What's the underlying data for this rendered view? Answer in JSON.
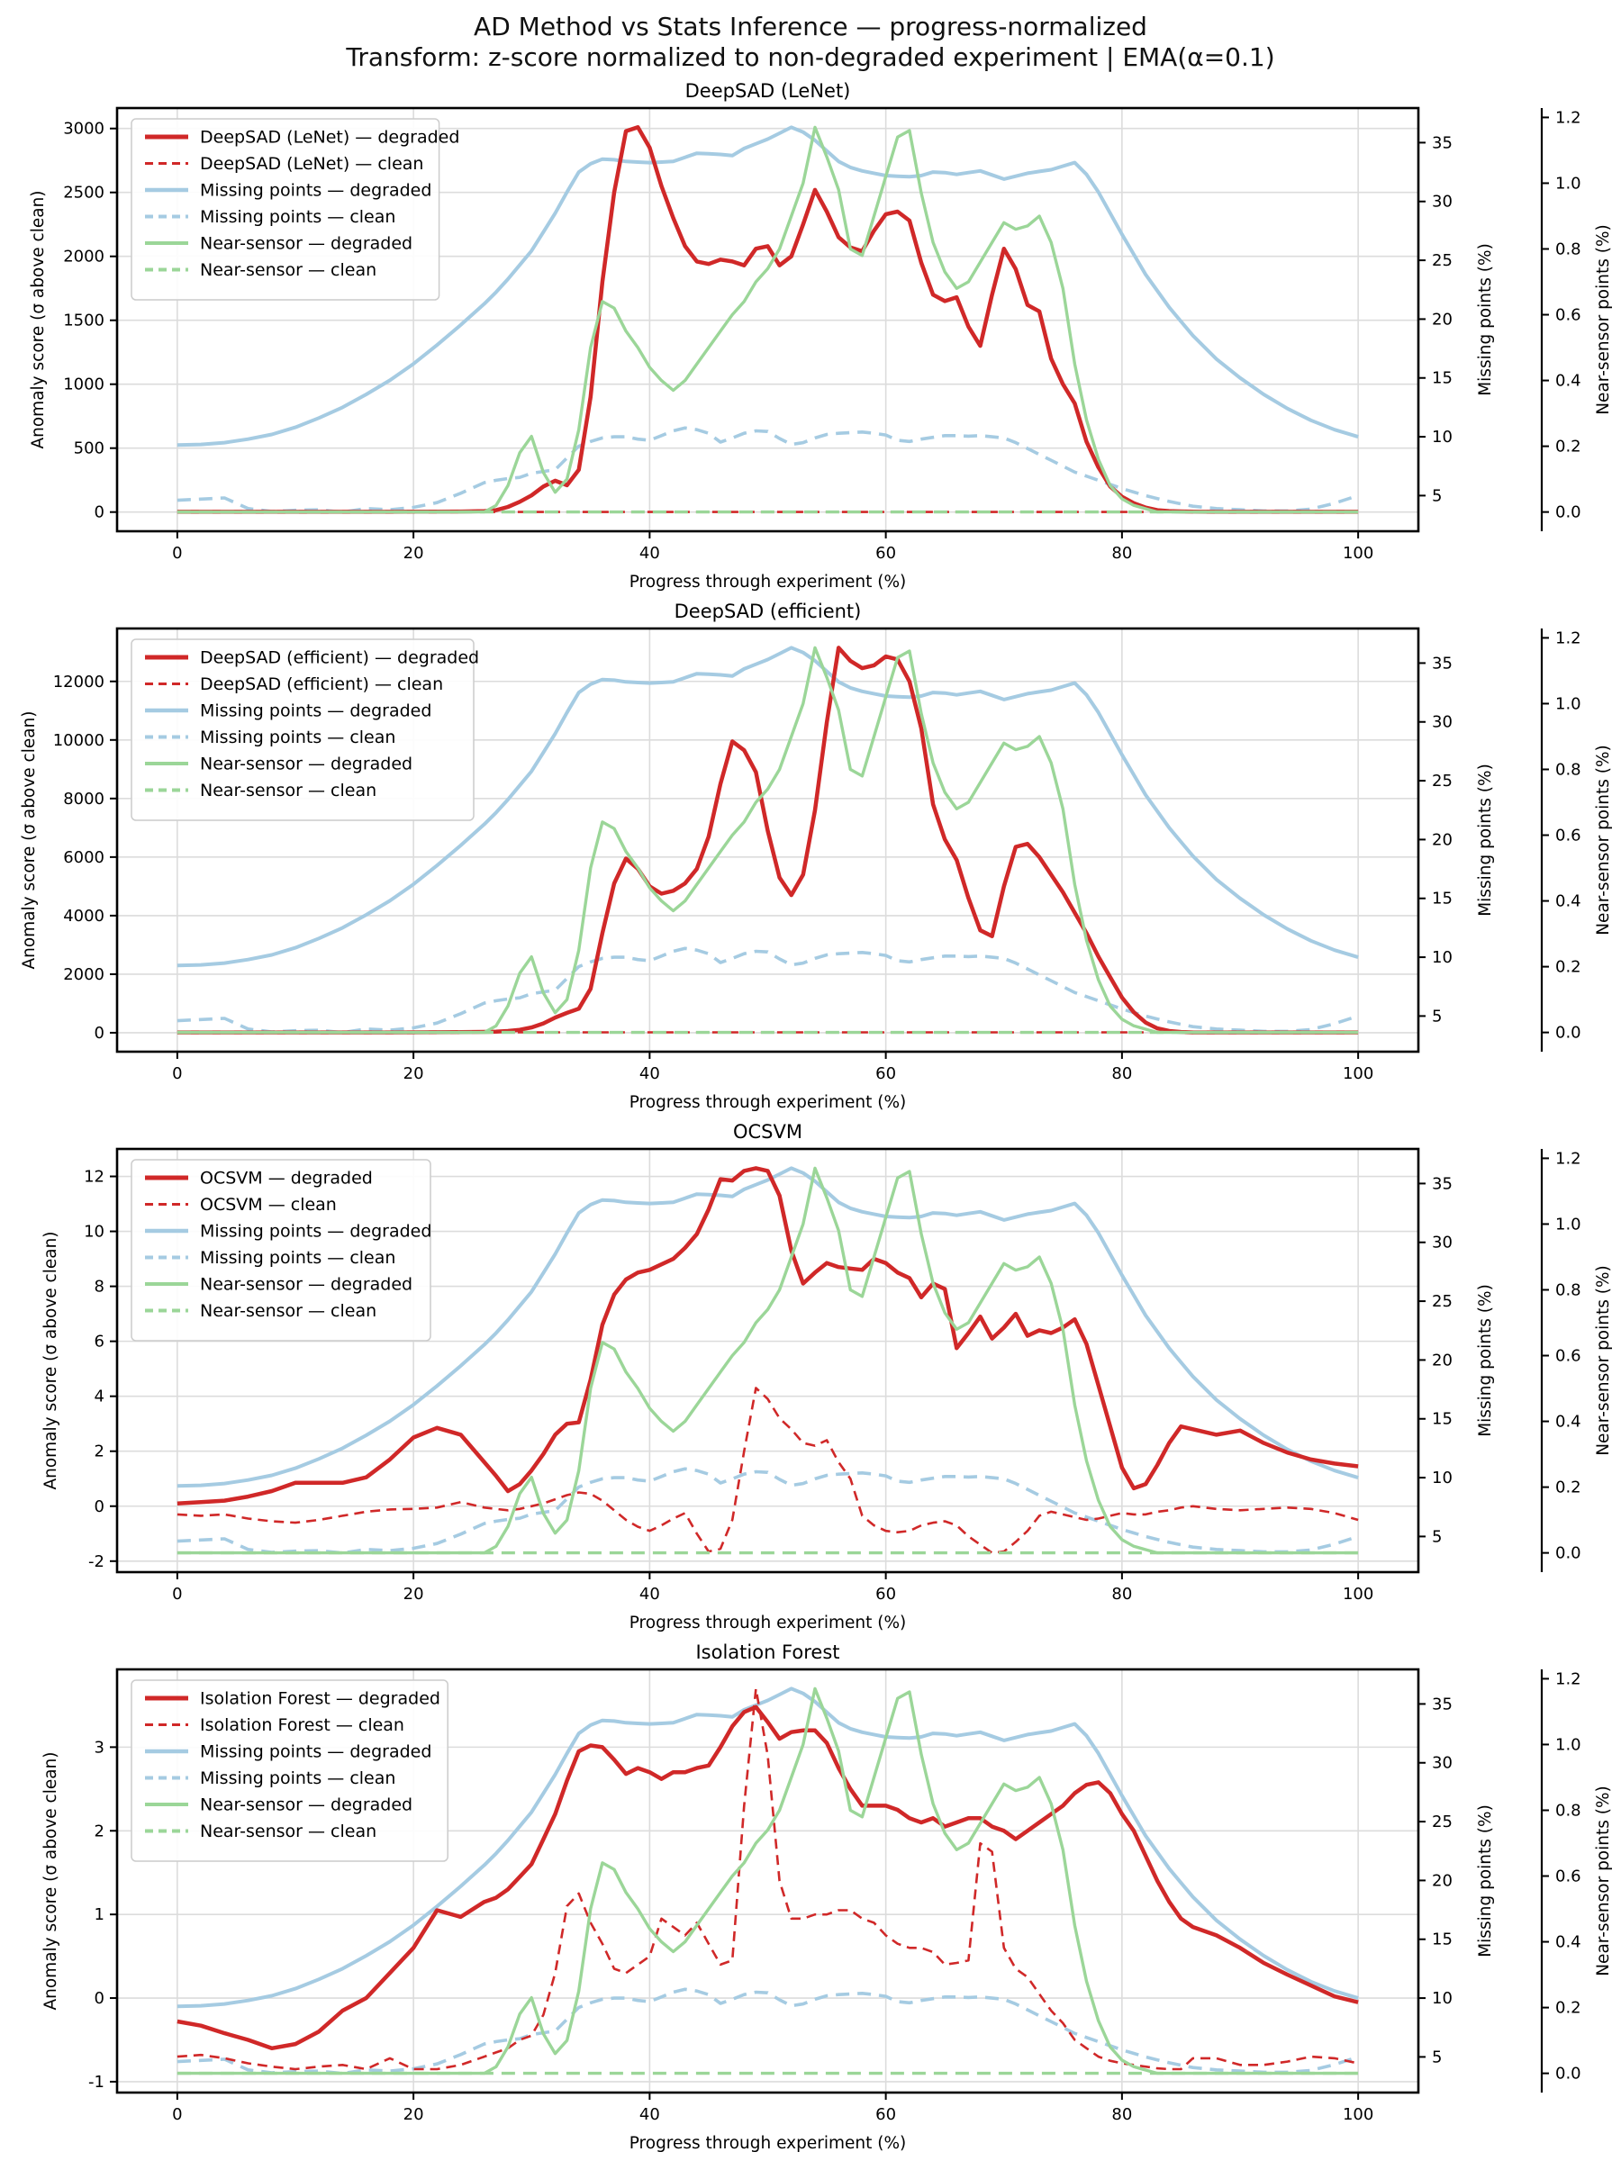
{
  "header": {
    "title": "AD Method vs Stats Inference — progress-normalized",
    "subtitle": "Transform: z-score normalized to non-degraded experiment | EMA(α=0.1)"
  },
  "colors": {
    "method": "#d02828",
    "missing": "#a5cbe2",
    "near": "#9bd698",
    "grid": "#dcdcdc",
    "spine": "#000000",
    "legend_border": "#cccccc",
    "text": "#000000"
  },
  "chart_data": {
    "type": "line",
    "xlabel": "Progress through experiment (%)",
    "ylabel_left": "Anomaly score (σ above clean)",
    "ylabel_right1": "Missing points (%)",
    "ylabel_right2": "Near-sensor points (%)",
    "x_ticks": [
      0,
      20,
      40,
      60,
      80,
      100
    ],
    "xlim": [
      -5.1,
      105.1
    ],
    "right1": {
      "lim": [
        1.97,
        37.94
      ],
      "ticks": [
        5,
        10,
        15,
        20,
        25,
        30,
        35
      ]
    },
    "right2": {
      "lim": [
        -0.0585,
        1.2285
      ],
      "ticks": [
        0.0,
        0.2,
        0.4,
        0.6,
        0.8,
        1.0,
        1.2
      ],
      "decimals": 1
    },
    "x": [
      0,
      2,
      4,
      6,
      8,
      10,
      12,
      14,
      16,
      18,
      20,
      22,
      24,
      26,
      27,
      28,
      29,
      30,
      31,
      32,
      33,
      34,
      35,
      36,
      37,
      38,
      39,
      40,
      41,
      42,
      43,
      44,
      45,
      46,
      47,
      48,
      49,
      50,
      51,
      52,
      53,
      54,
      55,
      56,
      57,
      58,
      59,
      60,
      61,
      62,
      63,
      64,
      65,
      66,
      67,
      68,
      69,
      70,
      71,
      72,
      73,
      74,
      75,
      76,
      77,
      78,
      79,
      80,
      81,
      82,
      83,
      84,
      85,
      86,
      88,
      90,
      92,
      94,
      96,
      98,
      100
    ],
    "stats": {
      "missing_degraded": {
        "label": "Missing points — degraded",
        "axis": "right1",
        "dashed": false,
        "values": [
          9.3,
          9.35,
          9.5,
          9.8,
          10.2,
          10.8,
          11.6,
          12.5,
          13.6,
          14.8,
          16.2,
          17.8,
          19.5,
          21.3,
          22.3,
          23.4,
          24.6,
          25.8,
          27.4,
          29.0,
          30.8,
          32.5,
          33.2,
          33.6,
          33.55,
          33.4,
          33.35,
          33.3,
          33.35,
          33.4,
          33.75,
          34.1,
          34.05,
          34.0,
          33.9,
          34.5,
          34.9,
          35.3,
          35.8,
          36.3,
          35.9,
          35.2,
          34.3,
          33.4,
          32.9,
          32.6,
          32.4,
          32.2,
          32.15,
          32.1,
          32.2,
          32.5,
          32.45,
          32.3,
          32.45,
          32.6,
          32.25,
          31.9,
          32.15,
          32.4,
          32.55,
          32.7,
          33.0,
          33.3,
          32.3,
          30.8,
          29.0,
          27.2,
          25.5,
          23.8,
          22.4,
          21.0,
          19.8,
          18.6,
          16.6,
          15.0,
          13.6,
          12.4,
          11.4,
          10.6,
          10.0
        ]
      },
      "missing_clean": {
        "label": "Missing points — clean",
        "axis": "right1",
        "dashed": true,
        "values": [
          4.6,
          4.7,
          4.8,
          3.9,
          3.65,
          3.75,
          3.8,
          3.6,
          3.9,
          3.8,
          4.0,
          4.4,
          5.2,
          6.1,
          6.3,
          6.45,
          6.55,
          6.9,
          7.05,
          7.2,
          8.2,
          9.2,
          9.6,
          9.9,
          10.0,
          10.0,
          9.8,
          9.7,
          10.1,
          10.5,
          10.75,
          10.6,
          10.3,
          9.55,
          9.9,
          10.3,
          10.5,
          10.45,
          9.85,
          9.35,
          9.5,
          9.9,
          10.2,
          10.3,
          10.35,
          10.4,
          10.3,
          10.15,
          9.7,
          9.6,
          9.8,
          9.95,
          10.1,
          10.1,
          10.05,
          10.1,
          10.0,
          9.9,
          9.5,
          9.0,
          8.5,
          8.0,
          7.5,
          7.0,
          6.65,
          6.3,
          5.95,
          5.6,
          5.3,
          5.0,
          4.75,
          4.5,
          4.3,
          4.1,
          3.9,
          3.8,
          3.7,
          3.7,
          3.85,
          4.35,
          5.0
        ]
      },
      "near_degraded": {
        "label": "Near-sensor — degraded",
        "axis": "right2",
        "dashed": false,
        "values": [
          0,
          0,
          0,
          0,
          0,
          0,
          0,
          0,
          0,
          0,
          0,
          0,
          0,
          0,
          0.02,
          0.08,
          0.18,
          0.23,
          0.12,
          0.06,
          0.1,
          0.25,
          0.5,
          0.64,
          0.62,
          0.55,
          0.5,
          0.44,
          0.4,
          0.37,
          0.4,
          0.45,
          0.5,
          0.55,
          0.6,
          0.64,
          0.7,
          0.74,
          0.8,
          0.9,
          1.0,
          1.17,
          1.08,
          0.98,
          0.8,
          0.78,
          0.9,
          1.02,
          1.14,
          1.16,
          0.97,
          0.82,
          0.73,
          0.68,
          0.7,
          0.76,
          0.82,
          0.88,
          0.86,
          0.87,
          0.9,
          0.82,
          0.68,
          0.45,
          0.28,
          0.16,
          0.08,
          0.04,
          0.02,
          0.01,
          0,
          0,
          0,
          0,
          0,
          0,
          0,
          0,
          0,
          0,
          0
        ]
      },
      "near_clean": {
        "label": "Near-sensor — clean",
        "axis": "right2",
        "dashed": true,
        "constant": 0.0
      }
    },
    "subplots": [
      {
        "id": "deepsad-lenet",
        "title": "DeepSAD (LeNet)",
        "ylim": [
          -150,
          3160
        ],
        "yticks": [
          0,
          500,
          1000,
          1500,
          2000,
          2500,
          3000
        ],
        "degraded": {
          "label": "DeepSAD (LeNet) — degraded",
          "values": [
            2,
            2,
            2,
            2,
            2,
            2,
            2,
            2,
            2,
            2,
            3,
            3,
            4,
            8,
            15,
            40,
            80,
            130,
            200,
            245,
            210,
            330,
            900,
            1800,
            2500,
            2980,
            3010,
            2850,
            2550,
            2300,
            2080,
            1960,
            1940,
            1975,
            1960,
            1930,
            2060,
            2080,
            1930,
            2000,
            2250,
            2520,
            2350,
            2150,
            2070,
            2040,
            2200,
            2330,
            2350,
            2280,
            1950,
            1700,
            1650,
            1680,
            1450,
            1300,
            1700,
            2060,
            1900,
            1620,
            1570,
            1200,
            1000,
            850,
            550,
            350,
            200,
            120,
            70,
            35,
            15,
            8,
            5,
            3,
            2,
            2,
            2,
            2,
            2,
            2,
            2
          ]
        },
        "clean": {
          "label": "DeepSAD (LeNet) — clean",
          "constant": 1
        }
      },
      {
        "id": "deepsad-efficient",
        "title": "DeepSAD (efficient)",
        "ylim": [
          -647,
          13807
        ],
        "yticks": [
          0,
          2000,
          4000,
          6000,
          8000,
          10000,
          12000
        ],
        "degraded": {
          "label": "DeepSAD (efficient) — degraded",
          "values": [
            10,
            10,
            10,
            10,
            10,
            10,
            10,
            10,
            10,
            12,
            15,
            18,
            20,
            30,
            40,
            60,
            100,
            180,
            320,
            520,
            680,
            820,
            1500,
            3400,
            5100,
            5950,
            5600,
            5000,
            4750,
            4850,
            5100,
            5600,
            6700,
            8500,
            9950,
            9650,
            8900,
            6900,
            5300,
            4700,
            5400,
            7600,
            10600,
            13150,
            12700,
            12450,
            12550,
            12850,
            12750,
            12000,
            10400,
            7800,
            6600,
            5900,
            4600,
            3500,
            3300,
            5000,
            6350,
            6450,
            6000,
            5400,
            4800,
            4100,
            3400,
            2600,
            1900,
            1200,
            700,
            350,
            150,
            60,
            25,
            10,
            10,
            10,
            10,
            10,
            10,
            10,
            10
          ]
        },
        "clean": {
          "label": "DeepSAD (efficient) — clean",
          "constant": 15
        }
      },
      {
        "id": "ocsvm",
        "title": "OCSVM",
        "ylim": [
          -2.4,
          13.0
        ],
        "yticks": [
          -2,
          0,
          2,
          4,
          6,
          8,
          10,
          12
        ],
        "degraded": {
          "label": "OCSVM — degraded",
          "values": [
            0.1,
            0.15,
            0.2,
            0.35,
            0.55,
            0.85,
            0.85,
            0.85,
            1.05,
            1.7,
            2.5,
            2.85,
            2.6,
            1.6,
            1.1,
            0.55,
            0.8,
            1.3,
            1.9,
            2.6,
            3.0,
            3.05,
            4.6,
            6.6,
            7.7,
            8.25,
            8.5,
            8.6,
            8.8,
            9.0,
            9.4,
            9.9,
            10.8,
            11.9,
            11.85,
            12.2,
            12.3,
            12.2,
            11.3,
            9.3,
            8.1,
            8.5,
            8.85,
            8.7,
            8.65,
            8.6,
            9.0,
            8.85,
            8.5,
            8.3,
            7.6,
            8.1,
            7.9,
            5.75,
            6.3,
            6.9,
            6.1,
            6.5,
            7.0,
            6.2,
            6.4,
            6.3,
            6.5,
            6.8,
            5.9,
            4.4,
            2.9,
            1.4,
            0.65,
            0.8,
            1.5,
            2.3,
            2.9,
            2.8,
            2.6,
            2.75,
            2.3,
            1.95,
            1.7,
            1.55,
            1.45
          ]
        },
        "clean": {
          "label": "OCSVM — clean",
          "values": [
            -0.3,
            -0.35,
            -0.3,
            -0.45,
            -0.55,
            -0.6,
            -0.5,
            -0.35,
            -0.2,
            -0.12,
            -0.1,
            -0.05,
            0.15,
            -0.05,
            -0.1,
            -0.15,
            -0.1,
            0.0,
            0.1,
            0.25,
            0.4,
            0.5,
            0.45,
            0.2,
            -0.15,
            -0.5,
            -0.75,
            -0.9,
            -0.7,
            -0.45,
            -0.25,
            -1.0,
            -1.65,
            -1.55,
            -0.5,
            2.0,
            4.3,
            3.9,
            3.2,
            2.8,
            2.3,
            2.2,
            2.4,
            1.6,
            1.0,
            -0.35,
            -0.7,
            -0.9,
            -0.95,
            -0.9,
            -0.7,
            -0.6,
            -0.55,
            -0.7,
            -1.1,
            -1.4,
            -1.7,
            -1.65,
            -1.3,
            -0.9,
            -0.35,
            -0.2,
            -0.3,
            -0.4,
            -0.5,
            -0.45,
            -0.35,
            -0.25,
            -0.3,
            -0.3,
            -0.2,
            -0.15,
            -0.05,
            0.0,
            -0.1,
            -0.15,
            -0.1,
            -0.05,
            -0.1,
            -0.25,
            -0.5
          ]
        }
      },
      {
        "id": "isolation-forest",
        "title": "Isolation Forest",
        "ylim": [
          -1.13,
          3.93
        ],
        "yticks": [
          -1,
          0,
          1,
          2,
          3
        ],
        "degraded": {
          "label": "Isolation Forest — degraded",
          "values": [
            -0.28,
            -0.33,
            -0.42,
            -0.5,
            -0.6,
            -0.55,
            -0.4,
            -0.15,
            0.0,
            0.3,
            0.6,
            1.05,
            0.97,
            1.15,
            1.2,
            1.3,
            1.45,
            1.6,
            1.9,
            2.2,
            2.6,
            2.95,
            3.02,
            3.0,
            2.85,
            2.68,
            2.75,
            2.7,
            2.62,
            2.7,
            2.7,
            2.75,
            2.78,
            3.0,
            3.25,
            3.42,
            3.48,
            3.3,
            3.1,
            3.18,
            3.2,
            3.2,
            3.05,
            2.75,
            2.5,
            2.3,
            2.3,
            2.3,
            2.25,
            2.15,
            2.1,
            2.15,
            2.05,
            2.1,
            2.15,
            2.15,
            2.05,
            2.0,
            1.9,
            2.0,
            2.1,
            2.2,
            2.3,
            2.45,
            2.55,
            2.58,
            2.45,
            2.2,
            2.0,
            1.7,
            1.4,
            1.15,
            0.95,
            0.85,
            0.75,
            0.6,
            0.42,
            0.28,
            0.15,
            0.02,
            -0.05
          ]
        },
        "clean": {
          "label": "Isolation Forest — clean",
          "values": [
            -0.7,
            -0.68,
            -0.72,
            -0.78,
            -0.82,
            -0.85,
            -0.82,
            -0.8,
            -0.85,
            -0.72,
            -0.85,
            -0.85,
            -0.8,
            -0.7,
            -0.65,
            -0.6,
            -0.5,
            -0.45,
            -0.2,
            0.3,
            1.1,
            1.25,
            0.9,
            0.65,
            0.35,
            0.3,
            0.4,
            0.5,
            0.95,
            0.85,
            0.75,
            0.9,
            0.65,
            0.4,
            0.45,
            2.3,
            3.7,
            2.9,
            1.4,
            0.95,
            0.95,
            1.0,
            1.0,
            1.05,
            1.05,
            0.95,
            0.9,
            0.75,
            0.65,
            0.6,
            0.6,
            0.55,
            0.4,
            0.42,
            0.45,
            1.85,
            1.75,
            0.6,
            0.35,
            0.25,
            0.05,
            -0.15,
            -0.3,
            -0.5,
            -0.6,
            -0.7,
            -0.75,
            -0.78,
            -0.8,
            -0.82,
            -0.84,
            -0.85,
            -0.85,
            -0.72,
            -0.72,
            -0.8,
            -0.8,
            -0.76,
            -0.7,
            -0.72,
            -0.78
          ]
        }
      }
    ]
  }
}
